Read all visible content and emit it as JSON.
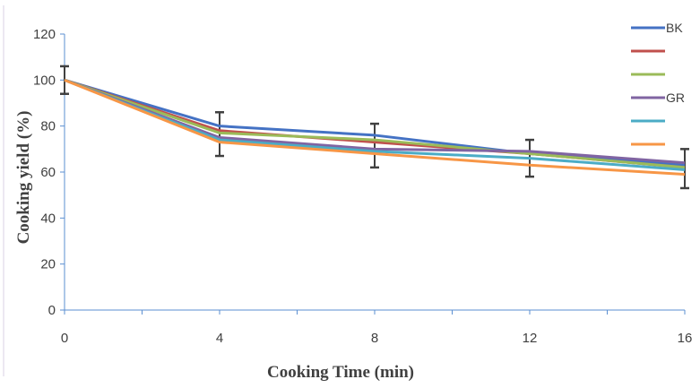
{
  "chart_data": {
    "type": "line",
    "xlabel": "Cooking Time (min)",
    "ylabel": "Cooking yield (%)",
    "x": [
      0,
      4,
      8,
      12,
      16
    ],
    "xticks": [
      "0",
      "4",
      "8",
      "12",
      "16"
    ],
    "yticks": [
      "0",
      "20",
      "40",
      "60",
      "80",
      "100",
      "120"
    ],
    "xlim": [
      0,
      16
    ],
    "ylim": [
      0,
      120
    ],
    "grid": false,
    "legend_position": "top-right",
    "series": [
      {
        "name": "BK",
        "color": "#4472c4",
        "values": [
          100,
          80,
          76,
          68,
          63
        ]
      },
      {
        "name": "",
        "color": "#c0504d",
        "values": [
          100,
          78,
          73,
          68,
          62
        ]
      },
      {
        "name": "",
        "color": "#9bbb59",
        "values": [
          100,
          77,
          74,
          68,
          62
        ]
      },
      {
        "name": "GR",
        "color": "#8064a2",
        "values": [
          100,
          75,
          70,
          69,
          64
        ]
      },
      {
        "name": "",
        "color": "#4bacc6",
        "values": [
          100,
          74,
          69,
          66,
          61
        ]
      },
      {
        "name": "",
        "color": "#f79646",
        "values": [
          100,
          73,
          68,
          63,
          59
        ]
      }
    ],
    "error_bars": {
      "color": "#404040",
      "lower": [
        94,
        67,
        62,
        58,
        53
      ],
      "upper": [
        106,
        86,
        81,
        74,
        70
      ]
    }
  }
}
